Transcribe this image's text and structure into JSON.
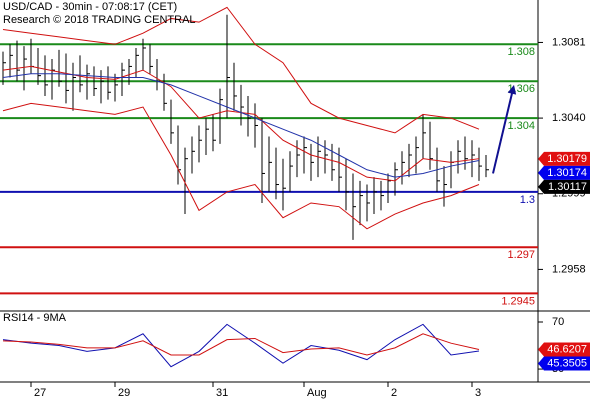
{
  "chart_data": [
    {
      "type": "hlc",
      "title": "USD/CAD - 30min - 07:08:17 (CET)",
      "subtitle": "Research © 2018 TRADING CENTRAL",
      "categories": [
        null,
        null,
        null,
        null,
        "27",
        null,
        null,
        null,
        null,
        null,
        null,
        null,
        null,
        null,
        null,
        null,
        "29",
        null,
        null,
        null,
        null,
        null,
        null,
        null,
        null,
        null,
        null,
        null,
        null,
        null,
        "31",
        null,
        null,
        null,
        null,
        null,
        null,
        null,
        null,
        null,
        null,
        null,
        null,
        "Aug",
        null,
        null,
        null,
        null,
        null,
        null,
        null,
        null,
        null,
        null,
        null,
        "2",
        null,
        null,
        null,
        null,
        null,
        null,
        null,
        null,
        null,
        null,
        null,
        "3",
        null,
        null
      ],
      "high": [
        1.3076,
        1.308,
        1.3082,
        1.3079,
        1.3083,
        1.3078,
        1.3074,
        1.3072,
        1.3077,
        1.3075,
        1.307,
        1.3074,
        1.3069,
        1.3068,
        1.3066,
        1.3068,
        1.3064,
        1.307,
        1.3072,
        1.3078,
        1.3083,
        1.308,
        1.3072,
        1.3064,
        1.305,
        1.3036,
        1.3024,
        1.303,
        1.3036,
        1.304,
        1.3042,
        1.3056,
        1.3096,
        1.307,
        1.3058,
        1.3052,
        1.3048,
        1.304,
        1.303,
        1.3024,
        1.3018,
        1.3022,
        1.3028,
        1.303,
        1.3026,
        1.303,
        1.3028,
        1.3026,
        1.3024,
        1.3018,
        1.301,
        1.3006,
        1.3004,
        1.3008,
        1.3006,
        1.301,
        1.3016,
        1.3022,
        1.3026,
        1.303,
        1.3042,
        1.3038,
        1.3024,
        1.3014,
        1.3022,
        1.3028,
        1.303,
        1.3028,
        1.3024,
        1.302
      ],
      "low": [
        1.3058,
        1.3062,
        1.306,
        1.3055,
        1.3064,
        1.3058,
        1.3052,
        1.305,
        1.3057,
        1.3048,
        1.3044,
        1.3054,
        1.305,
        1.3052,
        1.3048,
        1.305,
        1.3049,
        1.3052,
        1.3058,
        1.3062,
        1.3066,
        1.3064,
        1.3055,
        1.3044,
        1.3026,
        1.3004,
        1.2988,
        1.301,
        1.3016,
        1.302,
        1.3022,
        1.3026,
        1.304,
        1.3044,
        1.3036,
        1.303,
        1.3024,
        1.2994,
        1.3,
        1.2996,
        1.299,
        1.3,
        1.3008,
        1.301,
        1.3006,
        1.3008,
        1.301,
        1.3006,
        1.3,
        1.299,
        1.2974,
        1.2982,
        1.2984,
        1.2988,
        1.299,
        1.2994,
        1.2998,
        1.3004,
        1.3008,
        1.301,
        1.3018,
        1.3012,
        1.3,
        1.2992,
        1.3002,
        1.301,
        1.3012,
        1.3008,
        1.3006,
        1.3008
      ],
      "close": [
        1.307,
        1.3074,
        1.3066,
        1.3072,
        1.3068,
        1.3063,
        1.3058,
        1.3066,
        1.306,
        1.3055,
        1.3062,
        1.3058,
        1.3064,
        1.3056,
        1.306,
        1.3054,
        1.3058,
        1.3066,
        1.3068,
        1.3074,
        1.3078,
        1.3068,
        1.306,
        1.3048,
        1.3032,
        1.3012,
        1.3018,
        1.3022,
        1.3028,
        1.3034,
        1.3028,
        1.305,
        1.3062,
        1.3052,
        1.3046,
        1.304,
        1.3036,
        1.301,
        1.3016,
        1.3004,
        1.3002,
        1.3014,
        1.302,
        1.3024,
        1.3016,
        1.3022,
        1.302,
        1.3012,
        1.3008,
        1.3,
        1.2992,
        1.2998,
        1.2994,
        1.3,
        1.2998,
        1.3006,
        1.3012,
        1.3016,
        1.302,
        1.3024,
        1.3032,
        1.3018,
        1.3006,
        1.3004,
        1.3016,
        1.3022,
        1.3018,
        1.302,
        1.3014,
        1.3012
      ],
      "color": "#000000",
      "overlays": [
        {
          "color": "#d01010",
          "x": [
            0,
            4,
            8,
            12,
            16,
            20,
            24,
            28,
            32,
            36,
            40,
            44,
            48,
            52,
            56,
            60,
            64,
            68
          ],
          "values": [
            1.3088,
            1.3086,
            1.3084,
            1.3082,
            1.308,
            1.3086,
            1.3094,
            1.3092,
            1.31,
            1.308,
            1.307,
            1.3048,
            1.304,
            1.3036,
            1.3032,
            1.3042,
            1.304,
            1.3034
          ]
        },
        {
          "color": "#d01010",
          "x": [
            0,
            4,
            8,
            12,
            16,
            20,
            24,
            28,
            32,
            36,
            40,
            44,
            48,
            52,
            56,
            60,
            64,
            68
          ],
          "values": [
            1.3044,
            1.3048,
            1.3046,
            1.3044,
            1.3042,
            1.3046,
            1.302,
            1.299,
            1.3,
            1.3004,
            1.2986,
            1.2994,
            1.2992,
            1.298,
            1.2988,
            1.2994,
            1.2998,
            1.3004
          ]
        },
        {
          "color": "#d01010",
          "x": [
            0,
            4,
            8,
            12,
            16,
            20,
            24,
            28,
            32,
            36,
            40,
            44,
            48,
            52,
            56,
            60,
            64,
            68
          ],
          "values": [
            1.3066,
            1.3068,
            1.3065,
            1.3062,
            1.3061,
            1.3066,
            1.3057,
            1.304,
            1.3044,
            1.3042,
            1.3028,
            1.302,
            1.3016,
            1.3008,
            1.3006,
            1.3018,
            1.3016,
            1.3018
          ]
        },
        {
          "color": "#2233aa",
          "x": [
            0,
            4,
            8,
            12,
            16,
            20,
            24,
            28,
            32,
            36,
            40,
            44,
            48,
            52,
            56,
            60,
            64,
            68
          ],
          "values": [
            1.3062,
            1.3064,
            1.3064,
            1.3063,
            1.3062,
            1.3062,
            1.3058,
            1.3052,
            1.3046,
            1.304,
            1.3034,
            1.3028,
            1.302,
            1.3012,
            1.3008,
            1.301,
            1.3014,
            1.3017
          ]
        }
      ],
      "levels": [
        {
          "value": 1.308,
          "label": "1.308",
          "color": "#1a8a1a"
        },
        {
          "value": 1.306,
          "label": "1.306",
          "color": "#1a8a1a"
        },
        {
          "value": 1.304,
          "label": "1.304",
          "color": "#1a8a1a"
        },
        {
          "value": 1.3,
          "label": "1.3",
          "color": "#1010b0"
        },
        {
          "value": 1.297,
          "label": "1.297",
          "color": "#d01010"
        },
        {
          "value": 1.2945,
          "label": "1.2945",
          "color": "#d01010"
        }
      ],
      "tags": [
        {
          "value": 1.30179,
          "color": "#e01010"
        },
        {
          "value": 1.30174,
          "color": "#0000ee"
        },
        {
          "value": 1.30117,
          "color": "#000000"
        }
      ],
      "arrow": {
        "from": [
          70,
          1.301
        ],
        "to": [
          73,
          1.3058
        ],
        "color": "#101090"
      },
      "ylim": [
        1.2936,
        1.3104
      ],
      "yticks": [
        1.3081,
        {
          "value": 1.304,
          "label": "1.3040"
        },
        1.2999,
        1.2958
      ]
    },
    {
      "type": "line",
      "title": "RSI14 - 9MA",
      "overlays": [
        {
          "color": "#1010b0",
          "x": [
            0,
            4,
            8,
            12,
            16,
            20,
            24,
            28,
            32,
            36,
            40,
            44,
            48,
            52,
            56,
            60,
            64,
            68
          ],
          "values": [
            55,
            52,
            50,
            45,
            48,
            60,
            32,
            45,
            68,
            52,
            35,
            50,
            46,
            38,
            55,
            68,
            42,
            45.35
          ]
        },
        {
          "color": "#d01010",
          "x": [
            0,
            4,
            8,
            12,
            16,
            20,
            24,
            28,
            32,
            36,
            40,
            44,
            48,
            52,
            56,
            60,
            64,
            68
          ],
          "values": [
            54,
            53,
            51,
            48,
            48,
            54,
            42,
            42,
            55,
            56,
            44,
            47,
            48,
            42,
            48,
            60,
            52,
            46.62
          ]
        }
      ],
      "tags": [
        {
          "value": 46.6207,
          "color": "#e01010"
        },
        {
          "value": 45.3505,
          "color": "#0000ee"
        }
      ],
      "ylim": [
        19,
        78.5
      ],
      "yticks": [
        70,
        30
      ]
    }
  ]
}
